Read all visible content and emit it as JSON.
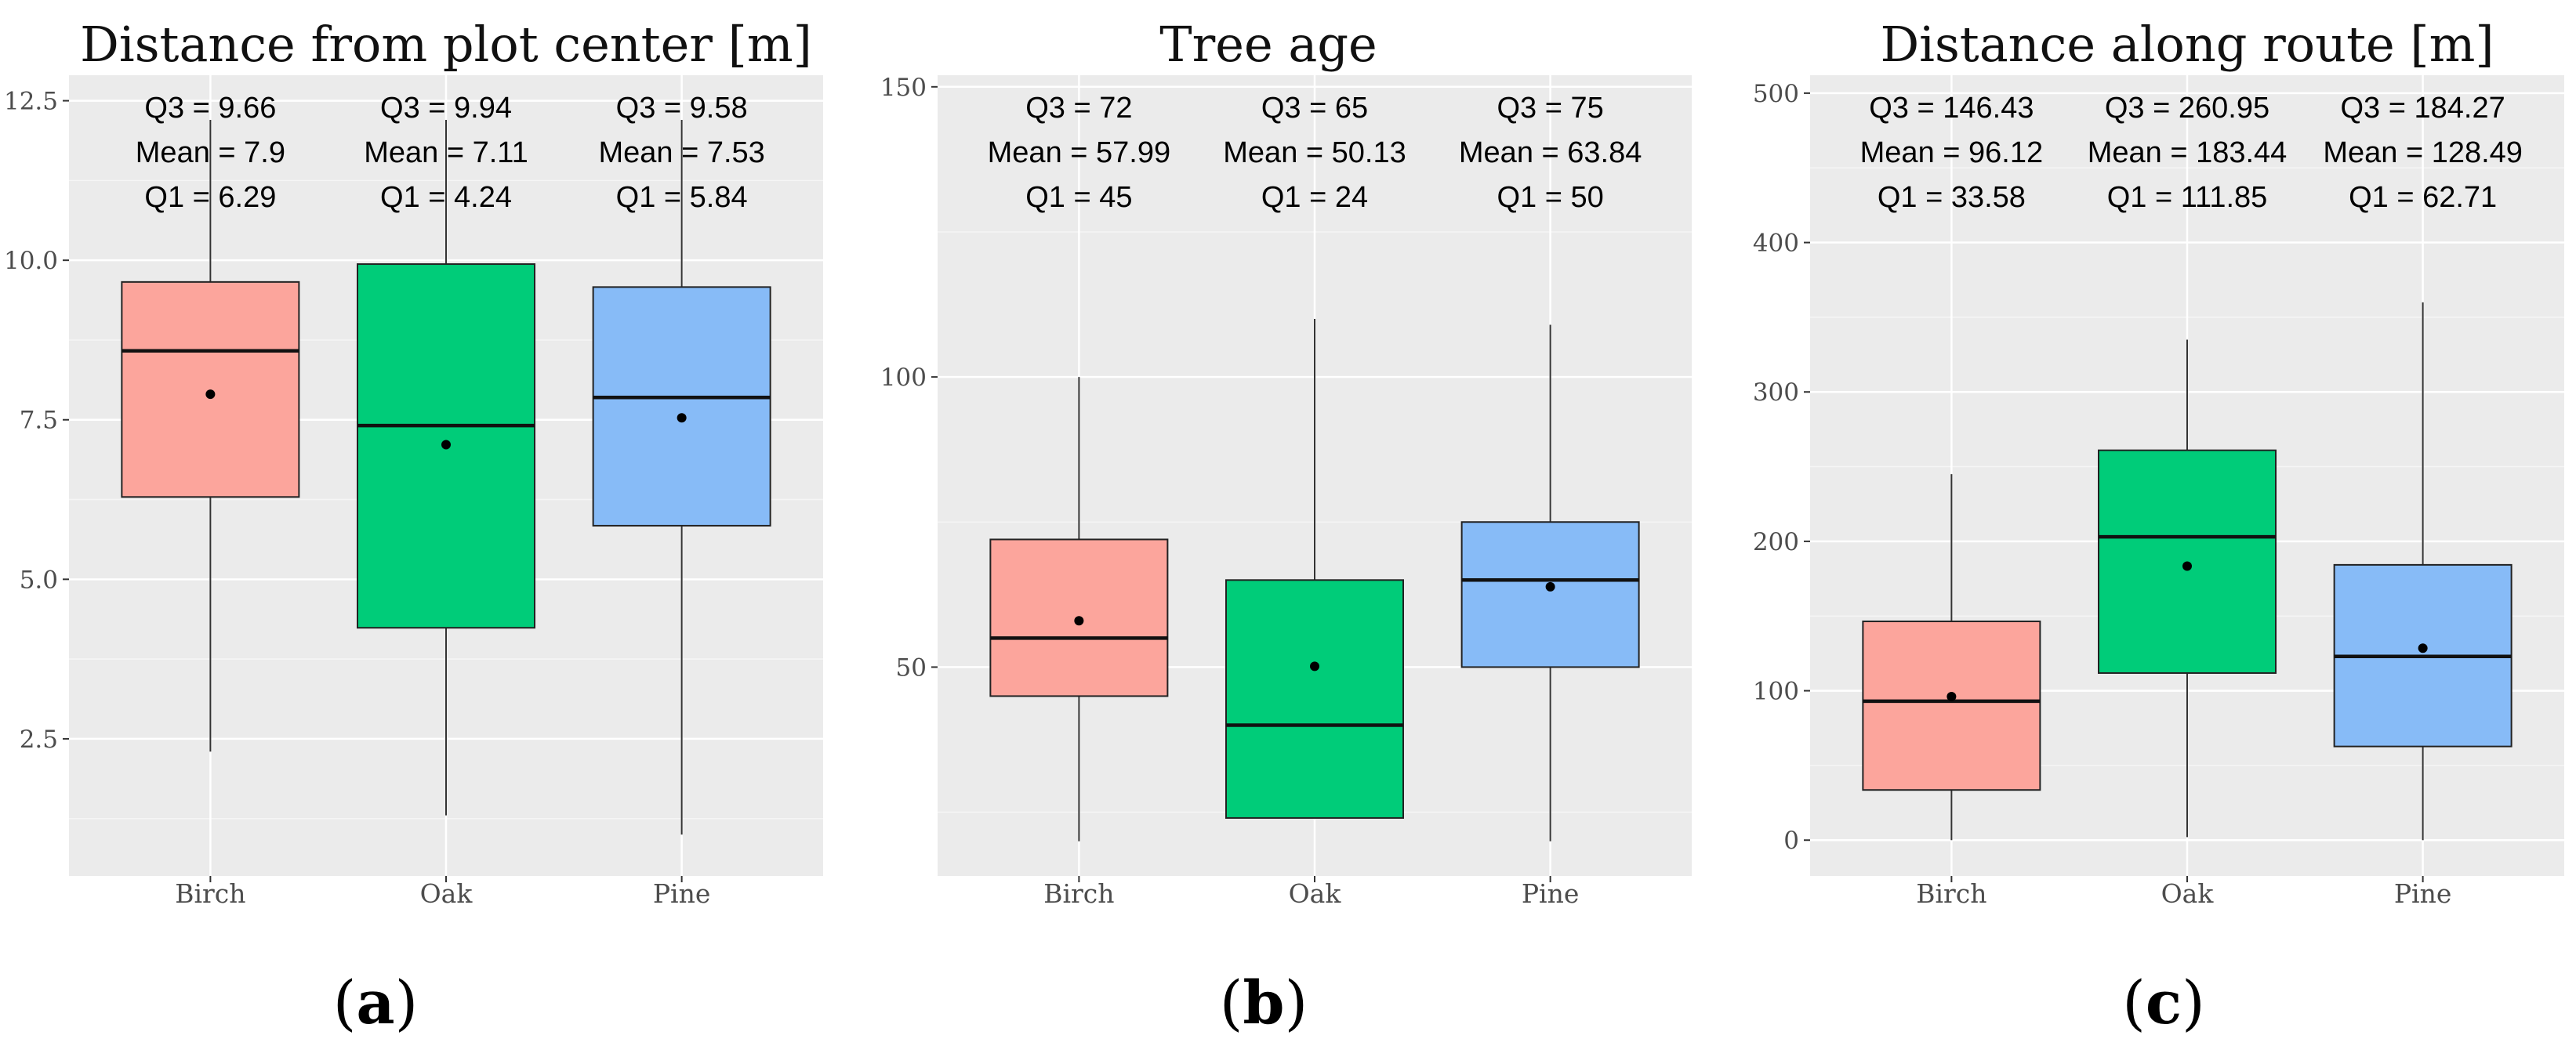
{
  "colors": {
    "Birch": "#fca59c",
    "Oak": "#00cc79",
    "Pine": "#87bbf7"
  },
  "chart_data": [
    {
      "type": "boxplot",
      "title": "Distance from plot center [m]",
      "caption_letter": "a",
      "categories": [
        "Birch",
        "Oak",
        "Pine"
      ],
      "ylim": [
        0.35,
        12.9
      ],
      "yticks": [
        2.5,
        5.0,
        7.5,
        10.0,
        12.5
      ],
      "ytick_labels": [
        "2.5",
        "5.0",
        "7.5",
        "10.0",
        "12.5"
      ],
      "boxes": [
        {
          "category": "Birch",
          "q1": 6.29,
          "median": 8.58,
          "q3": 9.66,
          "mean": 7.9,
          "whisker_low": 2.3,
          "whisker_high": 12.2
        },
        {
          "category": "Oak",
          "q1": 4.24,
          "median": 7.41,
          "q3": 9.94,
          "mean": 7.11,
          "whisker_low": 1.3,
          "whisker_high": 12.2
        },
        {
          "category": "Pine",
          "q1": 5.84,
          "median": 7.85,
          "q3": 9.58,
          "mean": 7.53,
          "whisker_low": 1.0,
          "whisker_high": 12.2
        }
      ],
      "annotations": [
        {
          "q3": "Q3 = 9.66",
          "mean": "Mean = 7.9",
          "q1": "Q1 = 6.29"
        },
        {
          "q3": "Q3 = 9.94",
          "mean": "Mean = 7.11",
          "q1": "Q1 = 4.24"
        },
        {
          "q3": "Q3 = 9.58",
          "mean": "Mean = 7.53",
          "q1": "Q1 = 5.84"
        }
      ]
    },
    {
      "type": "boxplot",
      "title": "Tree age",
      "caption_letter": "b",
      "categories": [
        "Birch",
        "Oak",
        "Pine"
      ],
      "ylim": [
        14,
        152
      ],
      "yticks": [
        50,
        100,
        150
      ],
      "ytick_labels": [
        "50",
        "100",
        "150"
      ],
      "boxes": [
        {
          "category": "Birch",
          "q1": 45,
          "median": 55,
          "q3": 72,
          "mean": 57.99,
          "whisker_low": 20,
          "whisker_high": 100
        },
        {
          "category": "Oak",
          "q1": 24,
          "median": 40,
          "q3": 65,
          "mean": 50.13,
          "whisker_low": 24,
          "whisker_high": 110
        },
        {
          "category": "Pine",
          "q1": 50,
          "median": 65,
          "q3": 75,
          "mean": 63.84,
          "whisker_low": 20,
          "whisker_high": 109
        }
      ],
      "annotations": [
        {
          "q3": "Q3 = 72",
          "mean": "Mean = 57.99",
          "q1": "Q1 = 45"
        },
        {
          "q3": "Q3 = 65",
          "mean": "Mean = 50.13",
          "q1": "Q1 = 24"
        },
        {
          "q3": "Q3 = 75",
          "mean": "Mean = 63.84",
          "q1": "Q1 = 50"
        }
      ]
    },
    {
      "type": "boxplot",
      "title": "Distance along route [m]",
      "caption_letter": "c",
      "categories": [
        "Birch",
        "Oak",
        "Pine"
      ],
      "ylim": [
        -24,
        512
      ],
      "yticks": [
        0,
        100,
        200,
        300,
        400,
        500
      ],
      "ytick_labels": [
        "0",
        "100",
        "200",
        "300",
        "400",
        "500"
      ],
      "boxes": [
        {
          "category": "Birch",
          "q1": 33.58,
          "median": 93,
          "q3": 146.43,
          "mean": 96.12,
          "whisker_low": 0,
          "whisker_high": 245
        },
        {
          "category": "Oak",
          "q1": 111.85,
          "median": 203,
          "q3": 260.95,
          "mean": 183.44,
          "whisker_low": 2,
          "whisker_high": 335
        },
        {
          "category": "Pine",
          "q1": 62.71,
          "median": 123,
          "q3": 184.27,
          "mean": 128.49,
          "whisker_low": 0,
          "whisker_high": 360
        }
      ],
      "annotations": [
        {
          "q3": "Q3 = 146.43",
          "mean": "Mean = 96.12",
          "q1": "Q1 = 33.58"
        },
        {
          "q3": "Q3 = 260.95",
          "mean": "Mean = 183.44",
          "q1": "Q1 = 111.85"
        },
        {
          "q3": "Q3 = 184.27",
          "mean": "Mean = 128.49",
          "q1": "Q1 = 62.71"
        }
      ]
    }
  ]
}
